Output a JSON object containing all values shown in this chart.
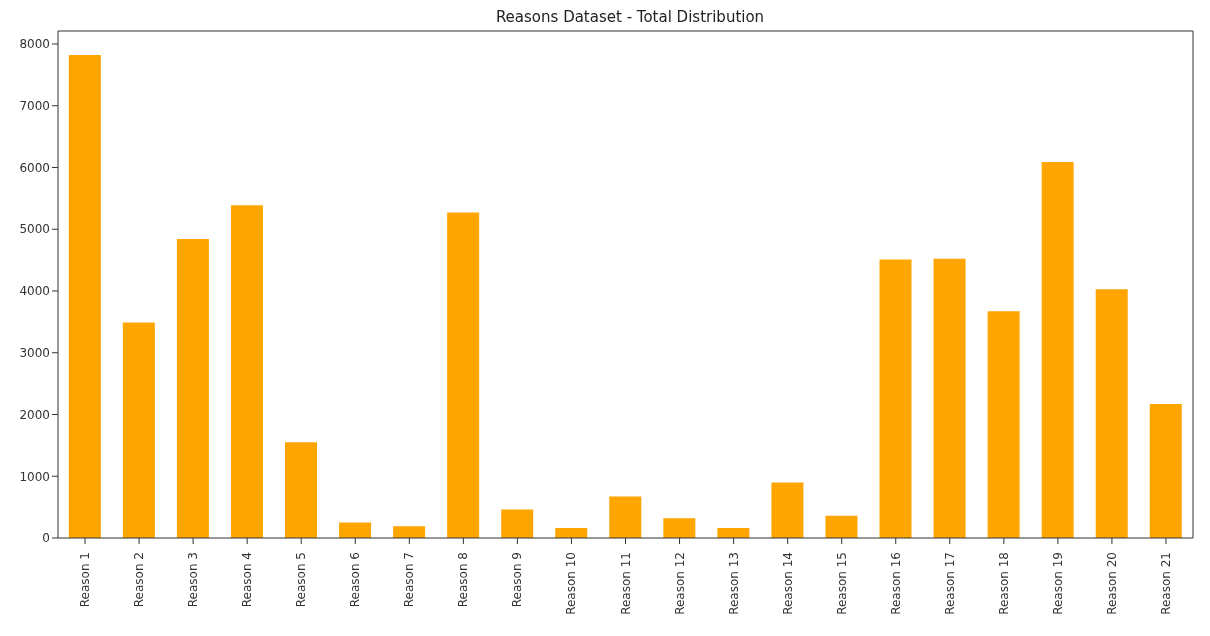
{
  "chart_data": {
    "type": "bar",
    "title": "Reasons Dataset - Total Distribution",
    "categories": [
      "Reason 1",
      "Reason 2",
      "Reason 3",
      "Reason 4",
      "Reason 5",
      "Reason 6",
      "Reason 7",
      "Reason 8",
      "Reason 9",
      "Reason 10",
      "Reason 11",
      "Reason 12",
      "Reason 13",
      "Reason 14",
      "Reason 15",
      "Reason 16",
      "Reason 17",
      "Reason 18",
      "Reason 19",
      "Reason 20",
      "Reason 21"
    ],
    "values": [
      7820,
      3490,
      4840,
      5390,
      1550,
      250,
      190,
      5270,
      460,
      160,
      670,
      320,
      160,
      900,
      360,
      4510,
      4520,
      3670,
      6090,
      4030,
      2170
    ],
    "color": "#ffa500",
    "ylim": [
      0,
      8210
    ],
    "yticks": [
      0,
      1000,
      2000,
      3000,
      4000,
      5000,
      6000,
      7000,
      8000
    ],
    "grid": false
  }
}
